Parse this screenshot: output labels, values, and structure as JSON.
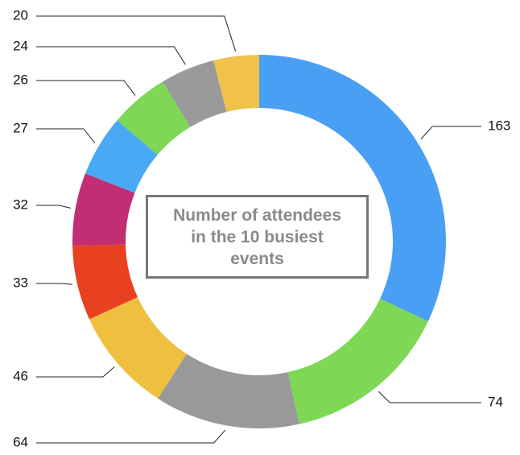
{
  "chart_data": {
    "type": "donut",
    "title": "Number of attendees in the 10 busiest events",
    "values": [
      163,
      74,
      64,
      46,
      33,
      32,
      27,
      26,
      24,
      20
    ],
    "colors": [
      "#499ff4",
      "#7ed755",
      "#999999",
      "#efc03f",
      "#e84122",
      "#c12e74",
      "#4aa9f5",
      "#7ed755",
      "#9a9a9a",
      "#f1c24a"
    ]
  }
}
